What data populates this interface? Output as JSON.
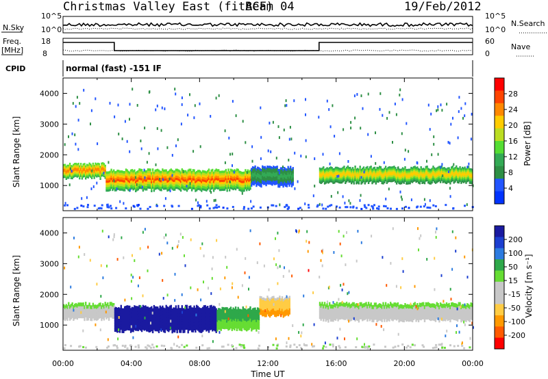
{
  "header": {
    "title": "Christmas Valley East (fitACF)",
    "beam": "Beam 04",
    "date": "19/Feb/2012"
  },
  "panels": {
    "nsky": {
      "label": "N.Sky",
      "right_label": "N.Search",
      "ytick_top": "10^5",
      "ytick_bottom": "10^0"
    },
    "freq": {
      "label": "Freq.",
      "unit": "[MHz]",
      "ytick_top": "18",
      "ytick_bottom": "8",
      "right_label": "Nave",
      "rtick_top": "60",
      "rtick_bottom": "0"
    },
    "cpid": {
      "label": "CPID",
      "text": "normal (fast) -151 IF"
    }
  },
  "colorbars": {
    "power": {
      "label": "Power [dB]",
      "ticks": [
        "28",
        "24",
        "20",
        "16",
        "12",
        "8",
        "4"
      ],
      "colors": [
        "#0033ff",
        "#2255ff",
        "#2e8f45",
        "#33aa55",
        "#55dd33",
        "#bbdd22",
        "#ffcc00",
        "#ff8800",
        "#ff4400",
        "#ff0000"
      ]
    },
    "velocity": {
      "label": "Velocity [m s⁻¹]",
      "ticks": [
        "200",
        "100",
        "50",
        "15",
        "-15",
        "-50",
        "-100",
        "-200"
      ],
      "colors": [
        "#1a1aa0",
        "#1c3fd0",
        "#2c7be0",
        "#2ea84a",
        "#66dd33",
        "#c8c8c8",
        "#c8c8c8",
        "#ffcc44",
        "#ff9900",
        "#ff5a00",
        "#ff0000"
      ]
    }
  },
  "chart_data": [
    {
      "type": "heatmap",
      "title": "Christmas Valley East (fitACF) Beam 04 19/Feb/2012",
      "variable": "Power",
      "unit": "dB",
      "xlabel": "Time UT",
      "ylabel": "Slant Range [km]",
      "xticks": [
        "00:00",
        "04:00",
        "08:00",
        "12:00",
        "16:00",
        "20:00",
        "00:00"
      ],
      "xlim": [
        0,
        24
      ],
      "ylim": [
        180,
        4500
      ],
      "yticks": [
        1000,
        2000,
        3000,
        4000
      ],
      "color_scale": [
        0,
        30
      ],
      "bands": [
        {
          "t": [
            0,
            2.5
          ],
          "range_km": [
            1250,
            1700
          ],
          "level": 24
        },
        {
          "t": [
            2.5,
            11
          ],
          "range_km": [
            850,
            1500
          ],
          "level": 26
        },
        {
          "t": [
            11,
            13.5
          ],
          "range_km": [
            1000,
            1600
          ],
          "level": 10
        },
        {
          "t": [
            15,
            24
          ],
          "range_km": [
            1100,
            1600
          ],
          "level": 22
        }
      ]
    },
    {
      "type": "heatmap",
      "variable": "Velocity",
      "unit": "m s-1",
      "xlabel": "Time UT",
      "ylabel": "Slant Range [km]",
      "xticks": [
        "00:00",
        "04:00",
        "08:00",
        "12:00",
        "16:00",
        "20:00",
        "00:00"
      ],
      "xlim": [
        0,
        24
      ],
      "ylim": [
        180,
        4500
      ],
      "yticks": [
        1000,
        2000,
        3000,
        4000
      ],
      "color_scale": [
        -200,
        200
      ],
      "bands": [
        {
          "t": [
            0,
            3
          ],
          "range_km": [
            1200,
            1700
          ],
          "value": 0
        },
        {
          "t": [
            3,
            9
          ],
          "range_km": [
            800,
            1600
          ],
          "value": 200
        },
        {
          "t": [
            9,
            11.5
          ],
          "range_km": [
            850,
            1550
          ],
          "value": 60
        },
        {
          "t": [
            11.5,
            13.3
          ],
          "range_km": [
            1300,
            1900
          ],
          "value": -80
        },
        {
          "t": [
            15,
            24
          ],
          "range_km": [
            1150,
            1700
          ],
          "value": 0
        }
      ]
    }
  ]
}
